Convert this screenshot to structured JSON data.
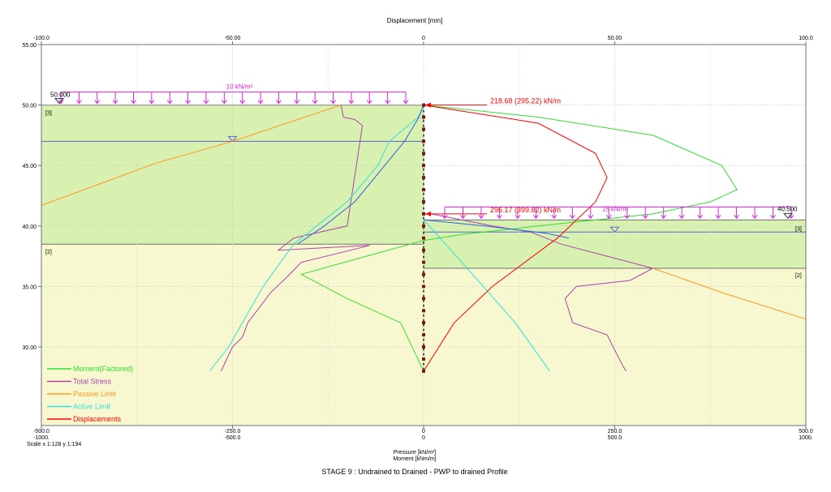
{
  "chart_data": {
    "type": "line",
    "top_axis": {
      "label": "Displacement [mm]",
      "ticks": [
        {
          "value": -100,
          "label": "-100.0"
        },
        {
          "value": -50,
          "label": "-50.00"
        },
        {
          "value": 0,
          "label": "0"
        },
        {
          "value": 50,
          "label": "50.00"
        },
        {
          "value": 100,
          "label": "100.0"
        }
      ]
    },
    "y_axis": {
      "ylim": [
        23.5,
        55
      ],
      "ticks": [
        {
          "value": 55,
          "label": "55.00"
        },
        {
          "value": 50,
          "label": "50.00"
        },
        {
          "value": 45,
          "label": "45.00"
        },
        {
          "value": 40,
          "label": "40.00"
        },
        {
          "value": 35,
          "label": "35.00"
        },
        {
          "value": 30,
          "label": "30.00"
        }
      ]
    },
    "x_axis": {
      "xlim": [
        -500,
        500
      ],
      "label_line1": "Pressure [kN/m²]",
      "label_line2": "Moment [kNm/m]",
      "ticks": [
        {
          "value": -500,
          "label1": "-500.0",
          "label2": "-1000."
        },
        {
          "value": -250,
          "label1": "-250.0",
          "label2": "-500.0"
        },
        {
          "value": 0,
          "label1": "0",
          "label2": "0"
        },
        {
          "value": 250,
          "label1": "250.0",
          "label2": "500.0"
        },
        {
          "value": 500,
          "label1": "500.0",
          "label2": "1000."
        }
      ]
    },
    "scale_text": "Scale x 1:128  y 1:194",
    "title": "STAGE 9 : Undrained to Drained - PWP to drained Profile",
    "grid": true,
    "legend_position": "bottom-left",
    "soil": {
      "left_ground_level": 50.0,
      "left_layer_boundary": 38.5,
      "right_ground_level": 40.5,
      "right_layer_boundary": 36.5,
      "left_water_table": 47.0,
      "right_water_table": 39.5,
      "base_level": 23.5,
      "wall_top": 50.0,
      "wall_toe": 28.0,
      "sand_color": "#d8f0b0",
      "clay_color": "#f8f8d0",
      "line_color": "#707070"
    },
    "annotations": {
      "left_level_label": "50.000",
      "right_level_label": "40.500",
      "left_surcharge_label": "10 kN/m²",
      "right_surcharge_label": "15 kN/m²",
      "left_top_layer": "[3]",
      "left_bottom_layer": "[2]",
      "right_top_layer": "[3]",
      "right_bottom_layer": "[2]",
      "strut_upper_label": "218.68 (295.22) kN/m",
      "strut_lower_label": "296.17 (399.82) kN/m",
      "strut_upper_level": 50.0,
      "strut_lower_level": 41.0,
      "annotation_color": "#ff0000",
      "surcharge_color": "#e020e0"
    },
    "legend": [
      {
        "label": "Moment(Factored)",
        "color": "#33dd33"
      },
      {
        "label": "Total Stress",
        "color": "#aa44aa"
      },
      {
        "label": "Passive Limit",
        "color": "#ff9922"
      },
      {
        "label": "Active Limit",
        "color": "#33dddd"
      },
      {
        "label": "Displacements",
        "color": "#ff0000"
      }
    ],
    "series": [
      {
        "name": "Moment(Factored)",
        "axis": "moment",
        "color": "#33dd33",
        "points": [
          [
            0,
            50
          ],
          [
            300,
            49
          ],
          [
            600,
            47.5
          ],
          [
            780,
            45
          ],
          [
            820,
            43
          ],
          [
            750,
            42
          ],
          [
            600,
            41
          ],
          [
            300,
            40
          ],
          [
            100,
            39.3
          ],
          [
            0,
            38.8
          ],
          [
            -150,
            37.5
          ],
          [
            -320,
            36
          ],
          [
            -200,
            34
          ],
          [
            -60,
            32
          ],
          [
            0,
            28
          ]
        ]
      },
      {
        "name": "Total Stress",
        "axis": "pressure",
        "color": "#aa44aa",
        "points": [
          [
            -108,
            50
          ],
          [
            -105,
            49
          ],
          [
            -90,
            48.8
          ],
          [
            -80,
            48.3
          ],
          [
            -100,
            40
          ],
          [
            -170,
            39
          ],
          [
            -190,
            38
          ],
          [
            -70,
            38.4
          ],
          [
            -160,
            37
          ],
          [
            -180,
            35.7
          ],
          [
            -200,
            34.5
          ],
          [
            -230,
            32
          ],
          [
            -237,
            30.8
          ],
          [
            -250,
            30
          ],
          [
            -265,
            28
          ]
        ]
      },
      {
        "name": "Total Stress",
        "axis": "pressure",
        "color": "#aa44aa",
        "points": [
          [
            10,
            41
          ],
          [
            90,
            40
          ],
          [
            140,
            39.5
          ],
          [
            180,
            38.5
          ],
          [
            240,
            37.5
          ],
          [
            300,
            36.5
          ],
          [
            270,
            35.5
          ],
          [
            200,
            35
          ],
          [
            185,
            34
          ],
          [
            195,
            32
          ],
          [
            240,
            31
          ],
          [
            260,
            28.5
          ],
          [
            265,
            28
          ]
        ]
      },
      {
        "name": "Passive Limit",
        "axis": "pressure",
        "color": "#ff9922",
        "points": [
          [
            -500,
            41.7
          ],
          [
            -350,
            45.2
          ],
          [
            -250,
            47
          ],
          [
            -108,
            50
          ]
        ]
      },
      {
        "name": "Passive Limit",
        "axis": "pressure",
        "color": "#ff9922",
        "points": [
          [
            300,
            36.5
          ],
          [
            390,
            34.5
          ],
          [
            500,
            32.3
          ]
        ]
      },
      {
        "name": "Active Limit",
        "axis": "pressure",
        "color": "#33dddd",
        "points": [
          [
            0,
            50
          ],
          [
            -7,
            49
          ],
          [
            -45,
            47
          ],
          [
            -60,
            45
          ],
          [
            -100,
            42
          ],
          [
            -140,
            40
          ],
          [
            -170,
            38.5
          ],
          [
            -210,
            35
          ],
          [
            -255,
            30
          ],
          [
            -280,
            28
          ]
        ]
      },
      {
        "name": "Active Limit",
        "axis": "pressure",
        "color": "#33dddd",
        "points": [
          [
            0,
            40.5
          ],
          [
            50,
            37
          ],
          [
            120,
            32
          ],
          [
            165,
            28
          ]
        ]
      },
      {
        "name": "Active Limit",
        "axis": "pressure",
        "color": "#3366dd",
        "points": [
          [
            0,
            50
          ],
          [
            -6,
            49
          ],
          [
            -25,
            47
          ],
          [
            -90,
            42
          ],
          [
            -130,
            40
          ],
          [
            -165,
            38.5
          ]
        ]
      },
      {
        "name": "Active Limit",
        "axis": "pressure",
        "color": "#3366dd",
        "points": [
          [
            0,
            40.5
          ],
          [
            80,
            40
          ],
          [
            160,
            39.4
          ],
          [
            190,
            39
          ]
        ]
      },
      {
        "name": "Displacements",
        "axis": "displacement",
        "color": "#ff0000",
        "points": [
          [
            0,
            50
          ],
          [
            30,
            48.5
          ],
          [
            45,
            46
          ],
          [
            48,
            44
          ],
          [
            45,
            42
          ],
          [
            35,
            39
          ],
          [
            18,
            35
          ],
          [
            8,
            32
          ],
          [
            0,
            28
          ]
        ]
      }
    ]
  }
}
